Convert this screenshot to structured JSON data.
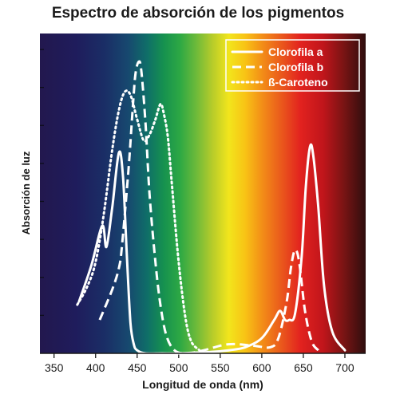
{
  "chart_data": {
    "type": "line",
    "title": "Espectro de absorción de los pigmentos",
    "xlabel": "Longitud de onda (nm)",
    "ylabel": "Absorción de luz",
    "xlim": [
      333,
      725
    ],
    "ylim": [
      0,
      1.0
    ],
    "xticks": [
      350,
      400,
      450,
      500,
      550,
      600,
      650,
      700
    ],
    "legend_position": "top-right",
    "background": "visible-light spectrum gradient",
    "series": [
      {
        "name": "Clorofila a",
        "style": "solid",
        "x": [
          380,
          395,
          408,
          413,
          420,
          428,
          433,
          438,
          442,
          446,
          450,
          460,
          480,
          500,
          540,
          560,
          580,
          600,
          615,
          622,
          628,
          633,
          640,
          648,
          653,
          658,
          662,
          668,
          675,
          685,
          700
        ],
        "y": [
          0.17,
          0.29,
          0.42,
          0.35,
          0.48,
          0.66,
          0.58,
          0.3,
          0.1,
          0.03,
          0.01,
          0.0,
          0.0,
          0.0,
          0.005,
          0.01,
          0.02,
          0.05,
          0.11,
          0.14,
          0.11,
          0.11,
          0.13,
          0.32,
          0.55,
          0.68,
          0.65,
          0.48,
          0.22,
          0.07,
          0.01
        ]
      },
      {
        "name": "Clorofila b",
        "style": "dashed",
        "x": [
          405,
          420,
          428,
          432,
          440,
          445,
          448,
          452,
          455,
          460,
          465,
          472,
          478,
          485,
          495,
          510,
          530,
          560,
          590,
          610,
          620,
          630,
          635,
          640,
          645,
          652,
          660,
          668
        ],
        "y": [
          0.11,
          0.21,
          0.28,
          0.36,
          0.62,
          0.82,
          0.92,
          0.96,
          0.93,
          0.76,
          0.52,
          0.3,
          0.16,
          0.06,
          0.01,
          0.0,
          0.01,
          0.03,
          0.025,
          0.02,
          0.05,
          0.17,
          0.28,
          0.34,
          0.3,
          0.14,
          0.04,
          0.01
        ]
      },
      {
        "name": "ß-Caroteno",
        "style": "dotted",
        "x": [
          378,
          390,
          400,
          410,
          420,
          428,
          435,
          442,
          450,
          458,
          465,
          472,
          478,
          482,
          487,
          492,
          500,
          508,
          515,
          525
        ],
        "y": [
          0.16,
          0.22,
          0.3,
          0.46,
          0.67,
          0.8,
          0.86,
          0.85,
          0.77,
          0.7,
          0.72,
          0.77,
          0.82,
          0.79,
          0.71,
          0.55,
          0.3,
          0.12,
          0.04,
          0.01
        ]
      }
    ]
  }
}
